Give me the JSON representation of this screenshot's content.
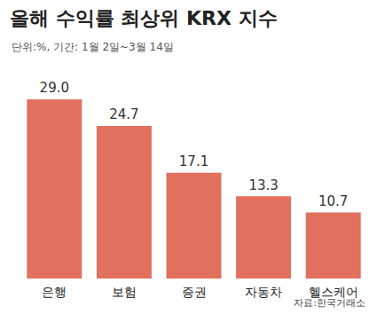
{
  "chart_data": {
    "type": "bar",
    "title": "올해 수익률 최상위 KRX 지수",
    "subtitle": "단위:%, 기간: 1월 2일~3월 14일",
    "source": "자료:한국거래소",
    "categories": [
      "은행",
      "보험",
      "증권",
      "자동차",
      "헬스케어"
    ],
    "values": [
      29.0,
      24.7,
      17.1,
      13.3,
      10.7
    ],
    "value_labels": [
      "29.0",
      "24.7",
      "17.1",
      "13.3",
      "10.7"
    ],
    "color": "#e2705f",
    "ylim": [
      0,
      31
    ],
    "grid": false,
    "data_labels": true,
    "tick_labels": "x"
  }
}
